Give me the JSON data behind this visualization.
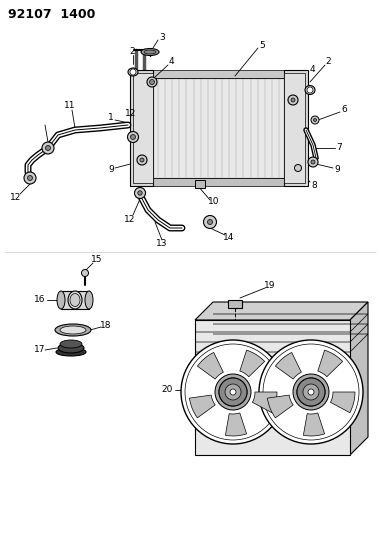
{
  "title": "92107  1400",
  "background_color": "#ffffff",
  "line_color": "#000000",
  "fig_width": 3.81,
  "fig_height": 5.33,
  "dpi": 100,
  "top_section": {
    "radiator": {
      "l": 148,
      "t": 70,
      "r": 295,
      "b": 185
    },
    "left_tank": {
      "l": 128,
      "t": 60,
      "r": 155,
      "b": 195
    },
    "right_tank": {
      "l": 288,
      "t": 65,
      "r": 310,
      "b": 195
    }
  }
}
